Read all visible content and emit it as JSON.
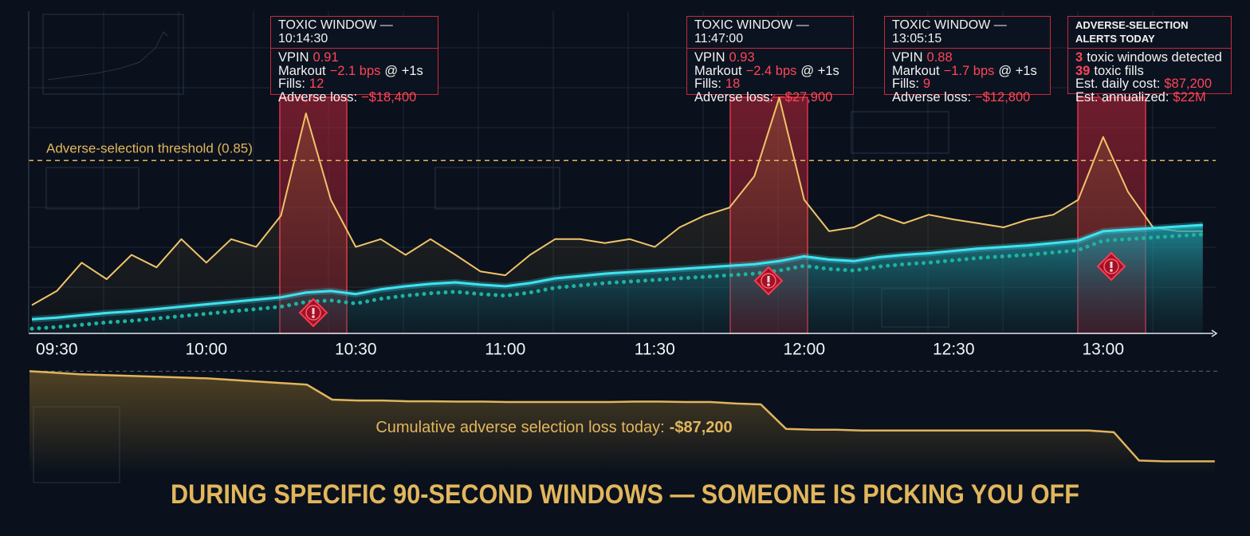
{
  "chart_data": [
    {
      "type": "line",
      "x": [
        "09:25",
        "09:30",
        "09:35",
        "09:40",
        "09:45",
        "09:50",
        "09:55",
        "10:00",
        "10:05",
        "10:10",
        "10:15",
        "10:20",
        "10:25",
        "10:30",
        "10:35",
        "10:40",
        "10:45",
        "10:50",
        "10:55",
        "11:00",
        "11:05",
        "11:10",
        "11:15",
        "11:20",
        "11:25",
        "11:30",
        "11:35",
        "11:40",
        "11:45",
        "11:50",
        "11:55",
        "12:00",
        "12:05",
        "12:10",
        "12:15",
        "12:20",
        "12:25",
        "12:30",
        "12:35",
        "12:40",
        "12:45",
        "12:50",
        "12:55",
        "13:00",
        "13:05",
        "13:10",
        "13:15",
        "13:20"
      ],
      "series": [
        {
          "color": "#f0c36a",
          "values": [
            0.666,
            0.684,
            0.72,
            0.699,
            0.73,
            0.714,
            0.75,
            0.72,
            0.75,
            0.74,
            0.78,
            0.91,
            0.8,
            0.74,
            0.75,
            0.73,
            0.75,
            0.73,
            0.709,
            0.704,
            0.73,
            0.75,
            0.75,
            0.745,
            0.75,
            0.74,
            0.765,
            0.78,
            0.79,
            0.83,
            0.93,
            0.8,
            0.76,
            0.765,
            0.781,
            0.77,
            0.781,
            0.775,
            0.77,
            0.765,
            0.775,
            0.781,
            0.8,
            0.88,
            0.81,
            0.765,
            0.76,
            0.76
          ]
        },
        {
          "color": "#3fe3f0",
          "values": [
            0.648,
            0.65,
            0.653,
            0.656,
            0.658,
            0.661,
            0.664,
            0.667,
            0.67,
            0.673,
            0.676,
            0.682,
            0.684,
            0.68,
            0.686,
            0.69,
            0.693,
            0.695,
            0.692,
            0.69,
            0.694,
            0.7,
            0.703,
            0.706,
            0.708,
            0.71,
            0.712,
            0.714,
            0.716,
            0.718,
            0.722,
            0.728,
            0.724,
            0.722,
            0.727,
            0.73,
            0.732,
            0.735,
            0.738,
            0.74,
            0.742,
            0.745,
            0.748,
            0.76,
            0.762,
            0.764,
            0.766,
            0.768
          ]
        },
        {
          "color": "#1fb3a0",
          "line_style": "dotted",
          "values": [
            0.636,
            0.638,
            0.641,
            0.644,
            0.646,
            0.649,
            0.652,
            0.655,
            0.658,
            0.661,
            0.664,
            0.67,
            0.672,
            0.668,
            0.674,
            0.678,
            0.681,
            0.683,
            0.68,
            0.678,
            0.682,
            0.688,
            0.691,
            0.694,
            0.696,
            0.698,
            0.7,
            0.702,
            0.704,
            0.706,
            0.71,
            0.716,
            0.712,
            0.71,
            0.715,
            0.718,
            0.72,
            0.723,
            0.726,
            0.728,
            0.73,
            0.733,
            0.736,
            0.748,
            0.75,
            0.752,
            0.754,
            0.756
          ]
        }
      ],
      "ylim": [
        0.63,
        1.04
      ],
      "xticks": [
        "09:30",
        "10:00",
        "10:30",
        "11:00",
        "11:30",
        "12:00",
        "12:30",
        "13:00"
      ],
      "threshold": {
        "label": "Adverse-selection threshold (0.85)",
        "value": 0.85
      },
      "annotations": [
        {
          "title": "TOXIC WINDOW — 10:14:30",
          "rows": [
            {
              "label": "VPIN",
              "value": "0.91"
            },
            {
              "label": "Markout",
              "value": "−2.1 bps",
              "suffix": "@ +1s"
            },
            {
              "label": "Fills:",
              "value": "12"
            },
            {
              "label": "Adverse loss:",
              "value": "−$18,400"
            }
          ]
        },
        {
          "title": "TOXIC WINDOW — 11:47:00",
          "rows": [
            {
              "label": "VPIN",
              "value": "0.93"
            },
            {
              "label": "Markout",
              "value": "−2.4 bps",
              "suffix": "@ +1s"
            },
            {
              "label": "Fills:",
              "value": "18"
            },
            {
              "label": "Adverse loss:",
              "value": "−$27,900"
            }
          ]
        },
        {
          "title": "TOXIC WINDOW — 13:05:15",
          "rows": [
            {
              "label": "VPIN",
              "value": "0.88"
            },
            {
              "label": "Markout",
              "value": "−1.7 bps",
              "suffix": "@ +1s"
            },
            {
              "label": "Fills:",
              "value": "9"
            },
            {
              "label": "Adverse loss:",
              "value": "−$12,800"
            }
          ]
        }
      ],
      "alerts": {
        "title": "ADVERSE-SELECTION ALERTS TODAY",
        "counts": [
          {
            "value": "3",
            "label": "toxic windows detected"
          },
          {
            "value": "39",
            "label": "toxic fills"
          }
        ],
        "costs": [
          {
            "label": "Est. daily cost:",
            "value": "$87,200"
          },
          {
            "label": "Est. annualized:",
            "value": "$22M"
          }
        ]
      }
    },
    {
      "type": "line",
      "x": [
        "09:25",
        "09:30",
        "09:35",
        "09:40",
        "09:45",
        "09:50",
        "09:55",
        "10:00",
        "10:05",
        "10:10",
        "10:15",
        "10:20",
        "10:25",
        "10:30",
        "10:35",
        "10:40",
        "10:45",
        "10:50",
        "10:55",
        "11:00",
        "11:05",
        "11:10",
        "11:15",
        "11:20",
        "11:25",
        "11:30",
        "11:35",
        "11:40",
        "11:45",
        "11:50",
        "11:55",
        "12:00",
        "12:05",
        "12:10",
        "12:15",
        "12:20",
        "12:25",
        "12:30",
        "12:35",
        "12:40",
        "12:45",
        "12:50",
        "12:55",
        "13:00",
        "13:05",
        "13:10",
        "13:15",
        "13:20"
      ],
      "values": [
        0,
        -1500,
        -3000,
        -3800,
        -4600,
        -5300,
        -6100,
        -6900,
        -8400,
        -9900,
        -11500,
        -13000,
        -27500,
        -28300,
        -28300,
        -29100,
        -29100,
        -29400,
        -29400,
        -29800,
        -29800,
        -29800,
        -29800,
        -29800,
        -29400,
        -29400,
        -29800,
        -29800,
        -31300,
        -32100,
        -55800,
        -56600,
        -56600,
        -57400,
        -57400,
        -57400,
        -57400,
        -57400,
        -57400,
        -57400,
        -57400,
        -57400,
        -57400,
        -59000,
        -86400,
        -87200,
        -87200,
        -87200
      ],
      "color": "#e0b45c",
      "ylim": [
        -100000,
        8000
      ],
      "annotation": {
        "label": "Cumulative adverse selection loss today:",
        "value": "-$87,200"
      }
    }
  ],
  "headline": "DURING SPECIFIC 90-SECOND WINDOWS — SOMEONE IS PICKING YOU OFF"
}
